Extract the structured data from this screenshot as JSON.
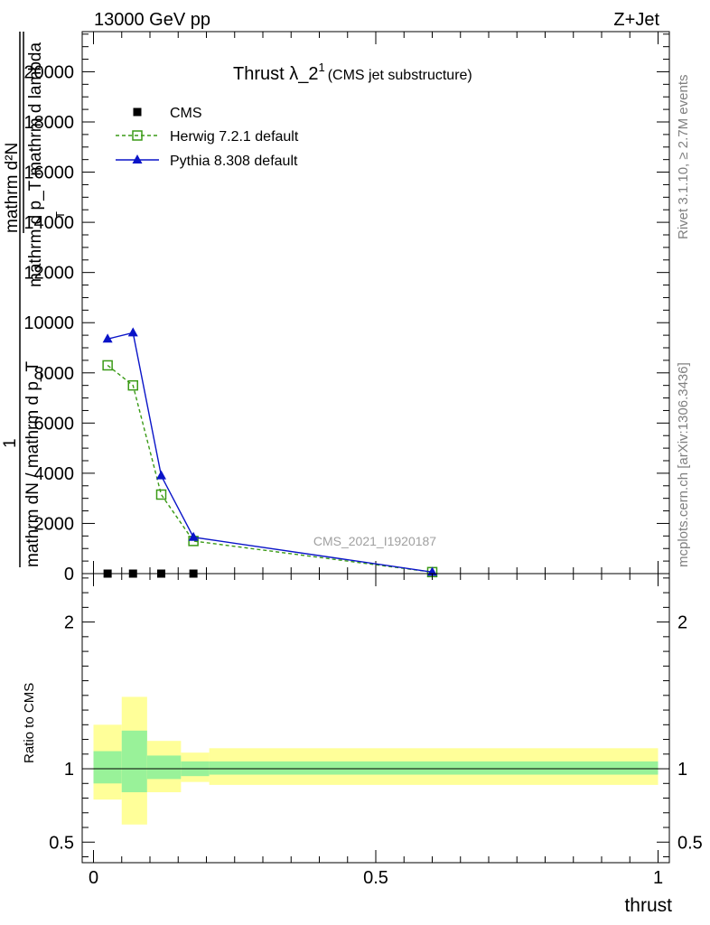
{
  "header": {
    "left": "13000 GeV pp",
    "right": "Z+Jet"
  },
  "side_labels": {
    "rivet": "Rivet 3.1.10, ≥ 2.7M events",
    "mcplots": "mcplots.cern.ch [arXiv:1306.3436]"
  },
  "chart_data": [
    {
      "type": "line",
      "title": "Thrust λ_2",
      "title_superscript": "1",
      "subtitle": "(CMS jet substructure)",
      "ylabel_lines": [
        "mathrm d²N",
        "mathrm d p_T mathrm d lambda",
        "1",
        "mathrm dN / mathrm d p_T"
      ],
      "ylabel_subscript": "T",
      "analysis_label": "CMS_2021_I1920187",
      "ylim": [
        0,
        21600
      ],
      "xlim": [
        -0.02,
        1.02
      ],
      "y_ticks": [
        0,
        2000,
        4000,
        6000,
        8000,
        10000,
        12000,
        14000,
        16000,
        18000,
        20000
      ],
      "y_tick_labels": [
        "0",
        "2000",
        "4000",
        "6000",
        "8000",
        "10000",
        "12000",
        "14000",
        "16000",
        "18000",
        "20000"
      ],
      "legend_position": "top-left",
      "series": [
        {
          "name": "CMS",
          "marker": "square-filled",
          "color": "#000000",
          "x": [
            0.025,
            0.07,
            0.12,
            0.177
          ],
          "y": [
            0,
            0,
            0,
            0
          ]
        },
        {
          "name": "Herwig 7.2.1 default",
          "marker": "square-open",
          "line": "dashed",
          "color": "#3a9a16",
          "x": [
            0.025,
            0.07,
            0.12,
            0.177,
            0.6
          ],
          "y": [
            8300,
            7500,
            3150,
            1300,
            60
          ]
        },
        {
          "name": "Pythia 8.308 default",
          "marker": "triangle-filled",
          "line": "solid",
          "color": "#0a14c8",
          "x": [
            0.025,
            0.07,
            0.12,
            0.177,
            0.6
          ],
          "y": [
            9350,
            9600,
            3900,
            1450,
            60
          ]
        }
      ]
    },
    {
      "type": "area",
      "ylabel": "Ratio to CMS",
      "xlabel": "thrust",
      "xlim": [
        -0.02,
        1.02
      ],
      "ylim": [
        0.36,
        2.33
      ],
      "y_ticks": [
        0.5,
        1,
        2
      ],
      "y_tick_labels": [
        "0.5",
        "1",
        "2"
      ],
      "x_ticks": [
        0,
        0.5,
        1
      ],
      "x_tick_labels": [
        "0",
        "0.5",
        "1"
      ],
      "reference_line": 1,
      "band_colors": {
        "inner": "#99f299",
        "outer": "#ffff99"
      },
      "bins": [
        {
          "x_low": 0.0,
          "x_high": 0.05,
          "inner": [
            0.9,
            1.12
          ],
          "outer": [
            0.79,
            1.3
          ]
        },
        {
          "x_low": 0.05,
          "x_high": 0.095,
          "inner": [
            0.84,
            1.26
          ],
          "outer": [
            0.62,
            1.49
          ]
        },
        {
          "x_low": 0.095,
          "x_high": 0.155,
          "inner": [
            0.93,
            1.09
          ],
          "outer": [
            0.84,
            1.19
          ]
        },
        {
          "x_low": 0.155,
          "x_high": 0.205,
          "inner": [
            0.95,
            1.05
          ],
          "outer": [
            0.91,
            1.11
          ]
        },
        {
          "x_low": 0.205,
          "x_high": 1.0,
          "inner": [
            0.96,
            1.05
          ],
          "outer": [
            0.89,
            1.14
          ]
        }
      ]
    }
  ]
}
